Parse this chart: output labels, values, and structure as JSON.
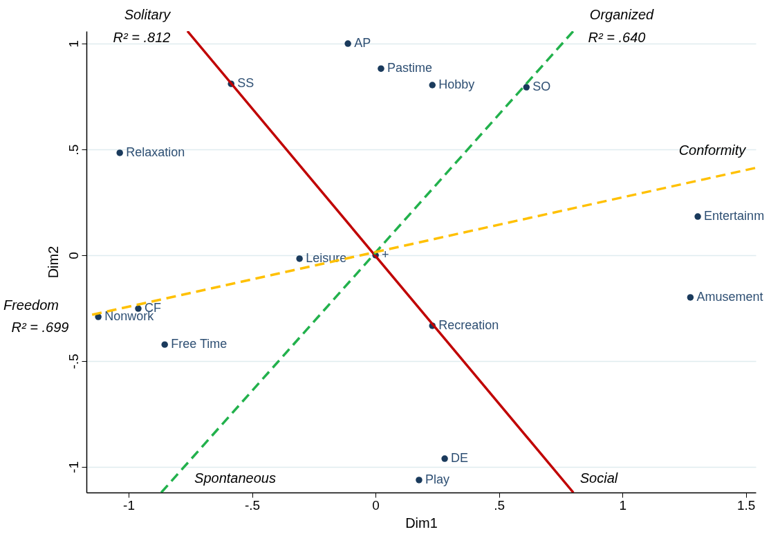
{
  "chart_data": {
    "type": "scatter",
    "xlabel": "Dim1",
    "ylabel": "Dim2",
    "xlim": [
      -1.171,
      1.54
    ],
    "ylim": [
      -1.121,
      1.059
    ],
    "xticks": [
      -1,
      {
        "value": -0.5,
        "label": "-.5"
      },
      0,
      {
        "value": 0.5,
        "label": ".5"
      },
      1,
      1.5
    ],
    "yticks": [
      -1,
      {
        "value": -0.5,
        "label": "-.5"
      },
      0,
      {
        "value": 0.5,
        "label": ".5"
      },
      1
    ],
    "grid": "y",
    "series": [
      {
        "marker": "circle",
        "color": "#1a3a5c",
        "x": [
          -0.112,
          0.022,
          0.23,
          0.611,
          -0.585,
          -1.036,
          1.305,
          -0.308,
          0,
          1.275,
          -0.961,
          -1.123,
          0.23,
          -0.854,
          0.28,
          0.176
        ],
        "values": [
          1.0,
          0.882,
          0.804,
          0.794,
          0.81,
          0.484,
          0.183,
          -0.016,
          0,
          -0.199,
          -0.252,
          -0.291,
          -0.333,
          -0.422,
          -0.961,
          -1.062
        ],
        "value_labels": [
          "AP",
          "Pastime",
          "Hobby",
          "SO",
          "SS",
          "Relaxation",
          "Entertainm",
          "Leisure",
          "+",
          "Amusement",
          "CF",
          "Nonwork",
          "Recreation",
          "Free Time",
          "DE",
          "Play"
        ]
      },
      {
        "type": "line",
        "color": "#c00000",
        "line_style": "solid",
        "x": [
          -0.762,
          0.801
        ],
        "values": [
          1.059,
          -1.121
        ]
      },
      {
        "type": "line",
        "color": "#22b14c",
        "line_style": "dashed",
        "x": [
          -0.868,
          0.801
        ],
        "values": [
          -1.121,
          1.059
        ]
      },
      {
        "type": "line",
        "color": "#ffc000",
        "line_style": "dashed",
        "x": [
          -1.148,
          1.54
        ],
        "values": [
          -0.281,
          0.413
        ]
      }
    ],
    "annotations": [
      "Solitary",
      "Organized",
      "Freedom",
      "R² = .699",
      "R² = .812",
      "R² = .640",
      "Conformity",
      "Spontaneous",
      "Social"
    ]
  }
}
